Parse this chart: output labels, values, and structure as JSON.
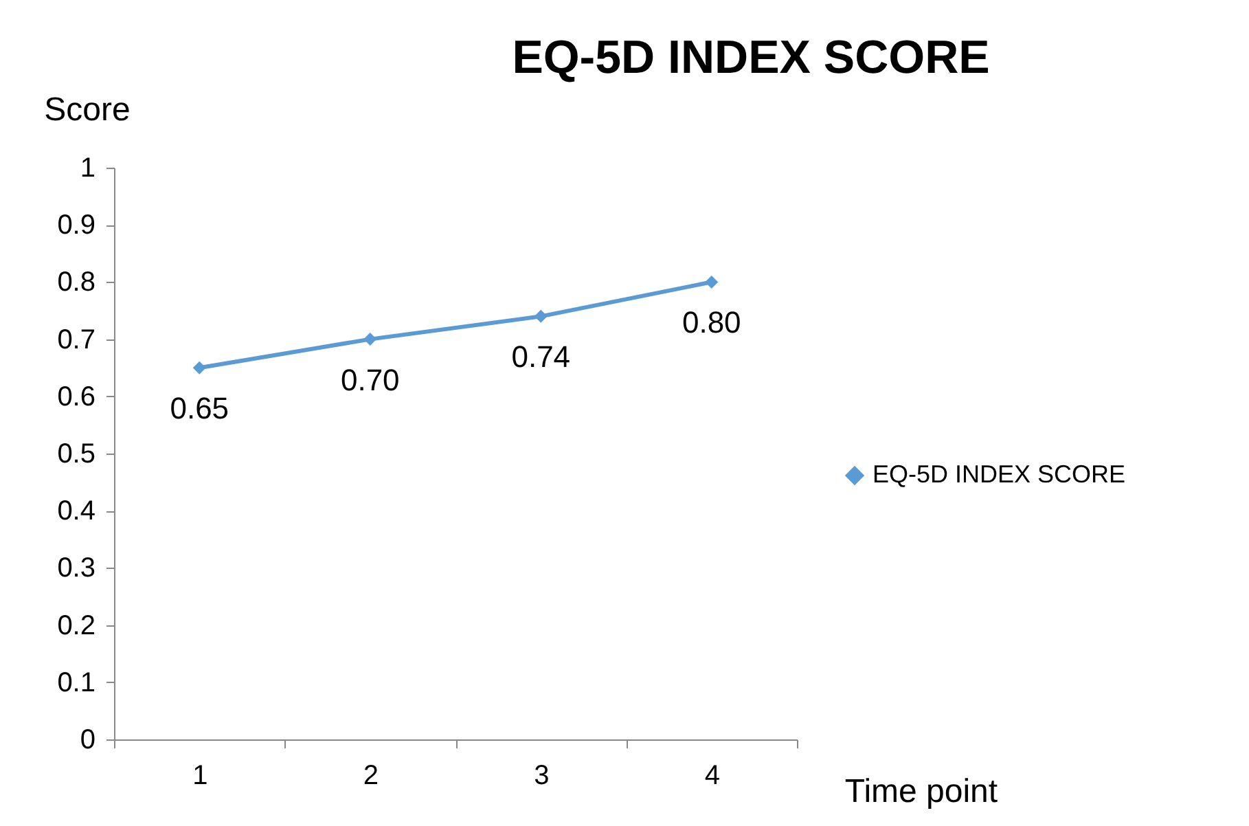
{
  "chart_data": {
    "type": "line",
    "title": "EQ-5D INDEX SCORE",
    "xlabel": "Time point",
    "ylabel": "Score",
    "categories": [
      "1",
      "2",
      "3",
      "4"
    ],
    "series": [
      {
        "name": "EQ-5D INDEX SCORE",
        "color": "#5b9bd5",
        "values": [
          0.65,
          0.7,
          0.74,
          0.8
        ],
        "value_labels": [
          "0.65",
          "0.70",
          "0.74",
          "0.80"
        ]
      }
    ],
    "ylim": [
      0,
      1
    ],
    "yticks": [
      0,
      0.1,
      0.2,
      0.3,
      0.4,
      0.5,
      0.6,
      0.7,
      0.8,
      0.9,
      1
    ],
    "grid": false,
    "legend": "right",
    "marker": "diamond",
    "line_style": "solid"
  }
}
